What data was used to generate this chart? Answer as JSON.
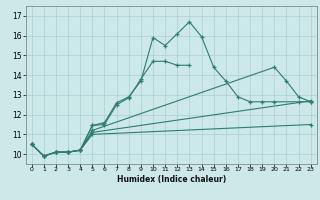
{
  "title": "",
  "xlabel": "Humidex (Indice chaleur)",
  "bg_color": "#cce8e8",
  "line_color": "#2e7d6e",
  "grid_color": "#aacfcf",
  "xlim": [
    -0.5,
    23.5
  ],
  "ylim": [
    9.5,
    17.5
  ],
  "xticks": [
    0,
    1,
    2,
    3,
    4,
    5,
    6,
    7,
    8,
    9,
    10,
    11,
    12,
    13,
    14,
    15,
    16,
    17,
    18,
    19,
    20,
    21,
    22,
    23
  ],
  "yticks": [
    10,
    11,
    12,
    13,
    14,
    15,
    16,
    17
  ],
  "series": [
    {
      "x": [
        0,
        1,
        2,
        3,
        4,
        5,
        6,
        7,
        8,
        9,
        10,
        11,
        12,
        13,
        14,
        15,
        16,
        17,
        18,
        19,
        20,
        22,
        23
      ],
      "y": [
        10.5,
        9.9,
        10.1,
        10.1,
        10.2,
        11.45,
        11.6,
        12.6,
        12.9,
        13.7,
        15.9,
        15.5,
        16.1,
        16.7,
        15.95,
        14.4,
        13.7,
        12.9,
        12.65,
        12.65,
        12.65,
        12.65,
        12.65
      ]
    },
    {
      "x": [
        0,
        1,
        2,
        3,
        4,
        5,
        6,
        7,
        8,
        9,
        10,
        11,
        12,
        13
      ],
      "y": [
        10.5,
        9.9,
        10.1,
        10.1,
        10.2,
        11.45,
        11.5,
        12.5,
        12.85,
        13.8,
        14.7,
        14.7,
        14.5,
        14.5
      ]
    },
    {
      "x": [
        0,
        1,
        2,
        3,
        4,
        5,
        20,
        21,
        22,
        23
      ],
      "y": [
        10.5,
        9.9,
        10.1,
        10.1,
        10.2,
        11.2,
        14.4,
        13.7,
        12.9,
        12.65
      ]
    },
    {
      "x": [
        0,
        1,
        2,
        3,
        4,
        5,
        23
      ],
      "y": [
        10.5,
        9.9,
        10.1,
        10.1,
        10.2,
        11.1,
        12.7
      ]
    },
    {
      "x": [
        0,
        1,
        2,
        3,
        4,
        5,
        23
      ],
      "y": [
        10.5,
        9.9,
        10.1,
        10.1,
        10.2,
        11.0,
        11.5
      ]
    }
  ]
}
